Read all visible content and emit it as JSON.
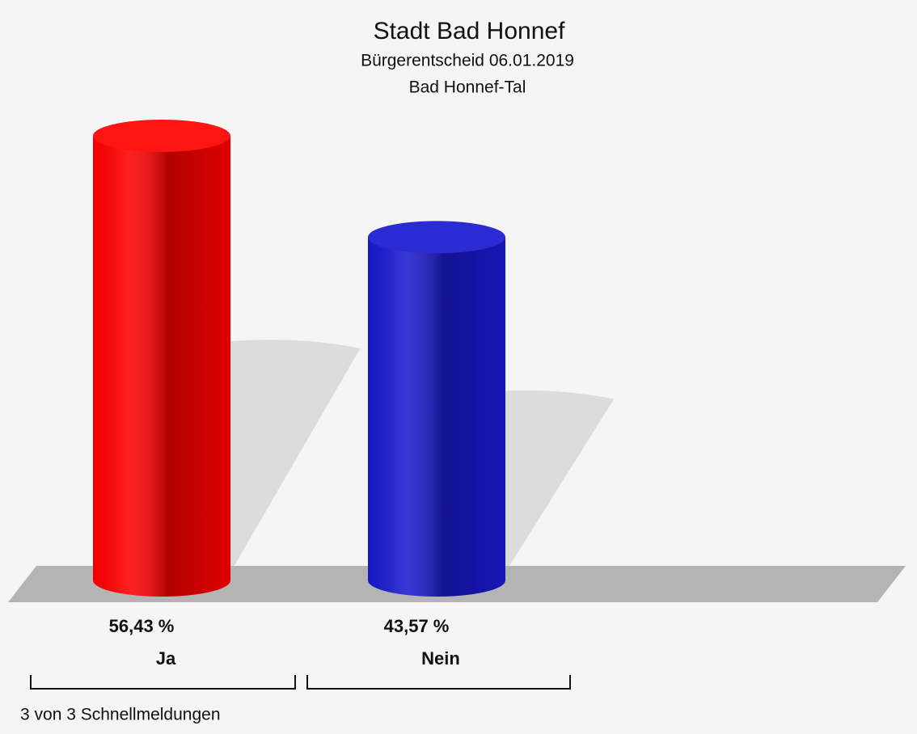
{
  "chart_data": {
    "type": "bar",
    "title": "Stadt Bad Honnef",
    "subtitles": [
      "Bürgerentscheid 06.01.2019",
      "Bad Honnef-Tal"
    ],
    "categories": [
      "Ja",
      "Nein"
    ],
    "values": [
      56.43,
      43.57
    ],
    "value_labels": [
      "56,43 %",
      "43,57 %"
    ],
    "colors": [
      "#ff0000",
      "#1a1ad0"
    ],
    "footnote": "3 von 3 Schnellmeldungen"
  }
}
